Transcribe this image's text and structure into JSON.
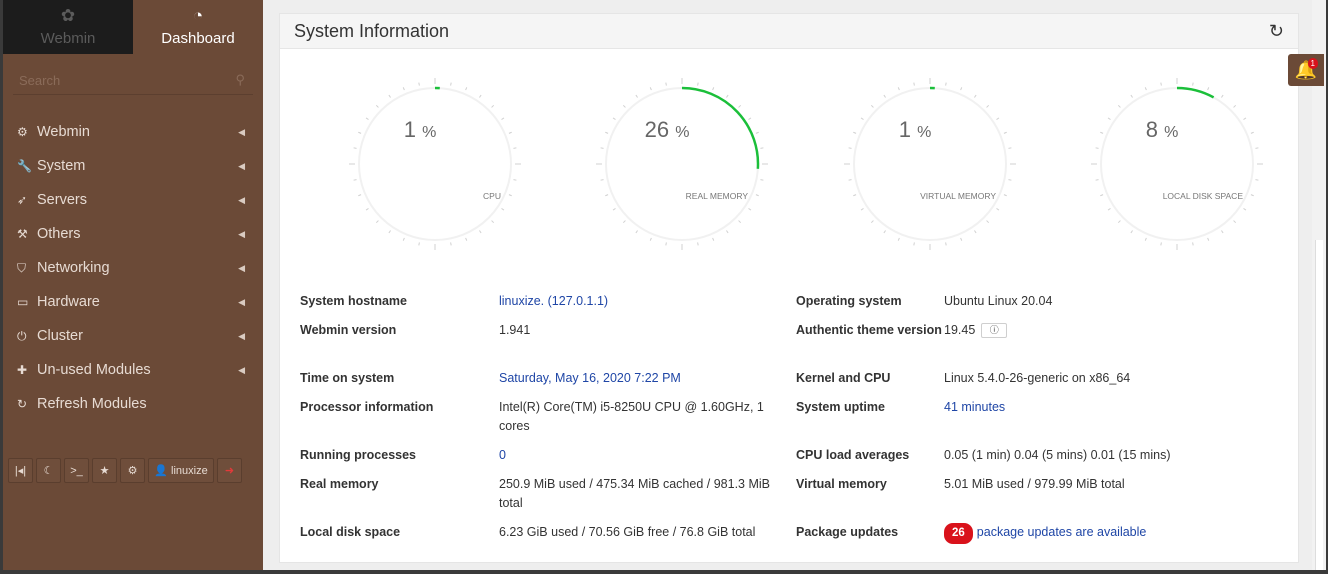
{
  "sidebar": {
    "tabs": [
      {
        "label": "Webmin",
        "icon": "webmin-logo-icon"
      },
      {
        "label": "Dashboard",
        "icon": "dashboard-icon"
      }
    ],
    "search_placeholder": "Search",
    "items": [
      {
        "label": "Webmin",
        "icon": "gear-icon"
      },
      {
        "label": "System",
        "icon": "wrench-icon"
      },
      {
        "label": "Servers",
        "icon": "rocket-icon"
      },
      {
        "label": "Others",
        "icon": "hammer-icon"
      },
      {
        "label": "Networking",
        "icon": "shield-icon"
      },
      {
        "label": "Hardware",
        "icon": "hdd-icon"
      },
      {
        "label": "Cluster",
        "icon": "power-icon"
      },
      {
        "label": "Un-used Modules",
        "icon": "puzzle-icon"
      },
      {
        "label": "Refresh Modules",
        "icon": "refresh-icon"
      }
    ],
    "bottom": {
      "user": "linuxize"
    }
  },
  "panel": {
    "title": "System Information"
  },
  "gauges": [
    {
      "label": "CPU",
      "value": "1",
      "unit": "%",
      "fraction": 0.01
    },
    {
      "label": "REAL MEMORY",
      "value": "26",
      "unit": "%",
      "fraction": 0.26
    },
    {
      "label": "VIRTUAL MEMORY",
      "value": "1",
      "unit": "%",
      "fraction": 0.01
    },
    {
      "label": "LOCAL DISK SPACE",
      "value": "8",
      "unit": "%",
      "fraction": 0.08
    }
  ],
  "info": {
    "hostname_label": "System hostname",
    "hostname": "linuxize. (127.0.1.1)",
    "os_label": "Operating system",
    "os": "Ubuntu Linux 20.04",
    "webmin_version_label": "Webmin version",
    "webmin_version": "1.941",
    "theme_label": "Authentic theme version",
    "theme": "19.45",
    "time_label": "Time on system",
    "time": "Saturday, May 16, 2020 7:22 PM",
    "kernel_label": "Kernel and CPU",
    "kernel": "Linux 5.4.0-26-generic on x86_64",
    "processor_label": "Processor information",
    "processor": "Intel(R) Core(TM) i5-8250U CPU @ 1.60GHz, 1 cores",
    "uptime_label": "System uptime",
    "uptime": "41 minutes",
    "processes_label": "Running processes",
    "processes": "0",
    "load_label": "CPU load averages",
    "load": "0.05 (1 min) 0.04 (5 mins) 0.01 (15 mins)",
    "realmem_label": "Real memory",
    "realmem": "250.9 MiB used / 475.34 MiB cached / 981.3 MiB total",
    "virtmem_label": "Virtual memory",
    "virtmem": "5.01 MiB used / 979.99 MiB total",
    "disk_label": "Local disk space",
    "disk": "6.23 GiB used / 70.56 GiB free / 76.8 GiB total",
    "updates_label": "Package updates",
    "updates_count": "26",
    "updates_text": "package updates are available"
  },
  "notifications": {
    "count": "1"
  },
  "colors": {
    "sidebar": "#6b4a37",
    "gauge_arc": "#1bbf3a",
    "link": "#1f46a6",
    "badge": "#d9121b"
  }
}
